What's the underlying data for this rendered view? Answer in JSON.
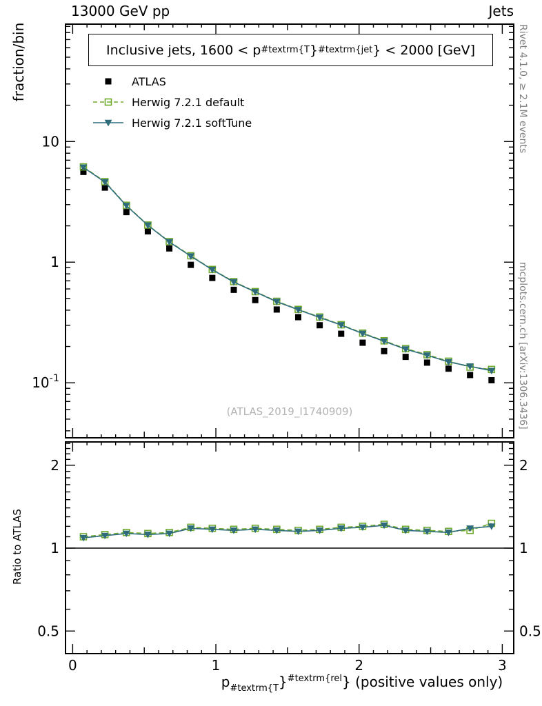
{
  "header": {
    "left": "13000 GeV pp",
    "right": "Jets"
  },
  "side_notes": {
    "top_right": "Rivet 4.1.0, ≥ 2.1M events",
    "bottom_right": "mcplots.cern.ch [arXiv:1306.3436]"
  },
  "watermark": "(ATLAS_2019_I1740909)",
  "main_panel": {
    "ylabel": "fraction/bin",
    "title_parts": {
      "prefix": "Inclusive jets, 1600 < p",
      "sub": "#textrm{T",
      "mid": "}",
      "sup": "#textrm{jet",
      "suffix": "} < 2000 [GeV]"
    }
  },
  "ratio_panel": {
    "ylabel": "Ratio to ATLAS"
  },
  "x_axis": {
    "title_parts": {
      "prefix": "p",
      "sub": "#textrm{T",
      "mid": "}",
      "sup": "#textrm{rel",
      "suffix": "} (positive values only)"
    }
  },
  "legend": [
    {
      "label": "ATLAS",
      "marker": "filled-square",
      "color": "#000000",
      "line": "none"
    },
    {
      "label": "Herwig 7.2.1 default",
      "marker": "open-square",
      "color": "#6faa2d",
      "line": "dashed"
    },
    {
      "label": "Herwig 7.2.1 softTune",
      "marker": "filled-triangle-down",
      "color": "#2e6c7c",
      "line": "solid"
    }
  ],
  "colors": {
    "frame": "#000000",
    "side_note": "#808080",
    "watermark": "#b3b3b3"
  },
  "chart_data": {
    "type": "line",
    "title": "Inclusive jets, 1600 < p_{#textrm{T}}^{#textrm{jet}} < 2000 [GeV]",
    "xlabel": "p_{#textrm{T}}^{#textrm{rel}} (positive values only)",
    "ylabel": "fraction/bin",
    "ratio_ylabel": "Ratio to ATLAS",
    "x": [
      0.075,
      0.225,
      0.375,
      0.525,
      0.675,
      0.825,
      0.975,
      1.125,
      1.275,
      1.425,
      1.575,
      1.725,
      1.875,
      2.025,
      2.175,
      2.325,
      2.475,
      2.625,
      2.775,
      2.925
    ],
    "series": [
      {
        "name": "ATLAS",
        "values": [
          5.6,
          4.15,
          2.6,
          1.8,
          1.3,
          0.95,
          0.74,
          0.59,
          0.485,
          0.405,
          0.35,
          0.3,
          0.255,
          0.215,
          0.183,
          0.164,
          0.147,
          0.131,
          0.116,
          0.105
        ]
      },
      {
        "name": "Herwig 7.2.1 default",
        "values": [
          6.16,
          4.65,
          2.96,
          2.03,
          1.48,
          1.13,
          0.87,
          0.69,
          0.57,
          0.474,
          0.406,
          0.351,
          0.303,
          0.258,
          0.223,
          0.192,
          0.171,
          0.151,
          0.135,
          0.129
        ]
      },
      {
        "name": "Herwig 7.2.1 softTune",
        "values": [
          6.1,
          4.61,
          2.94,
          2.02,
          1.47,
          1.12,
          0.866,
          0.684,
          0.567,
          0.47,
          0.403,
          0.348,
          0.301,
          0.256,
          0.221,
          0.19,
          0.169,
          0.149,
          0.137,
          0.126
        ]
      }
    ],
    "ratio_series": [
      {
        "name": "Herwig 7.2.1 default",
        "values": [
          1.1,
          1.12,
          1.14,
          1.13,
          1.14,
          1.19,
          1.18,
          1.17,
          1.18,
          1.17,
          1.16,
          1.17,
          1.19,
          1.2,
          1.22,
          1.17,
          1.16,
          1.15,
          1.16,
          1.23
        ]
      },
      {
        "name": "Herwig 7.2.1 softTune",
        "values": [
          1.09,
          1.11,
          1.13,
          1.12,
          1.13,
          1.18,
          1.17,
          1.16,
          1.17,
          1.16,
          1.15,
          1.16,
          1.18,
          1.19,
          1.21,
          1.16,
          1.15,
          1.14,
          1.18,
          1.2
        ]
      }
    ],
    "axes": {
      "x": {
        "min": -0.05,
        "max": 3.08,
        "ticks": [
          0,
          1,
          2,
          3
        ],
        "tick_labels": [
          "0",
          "1",
          "2",
          "3"
        ]
      },
      "y_main": {
        "scale": "log",
        "min": 0.035,
        "max": 94,
        "tick_values": [
          10,
          1,
          0.1
        ],
        "tick_labels": [
          "10",
          "1",
          "10^{-1}"
        ]
      },
      "y_ratio": {
        "scale": "log",
        "min": 0.414,
        "max": 2.43,
        "tick_values": [
          2,
          1,
          0.5
        ],
        "tick_labels": [
          "2",
          "1",
          "0.5"
        ]
      }
    },
    "reference_line": 1
  }
}
